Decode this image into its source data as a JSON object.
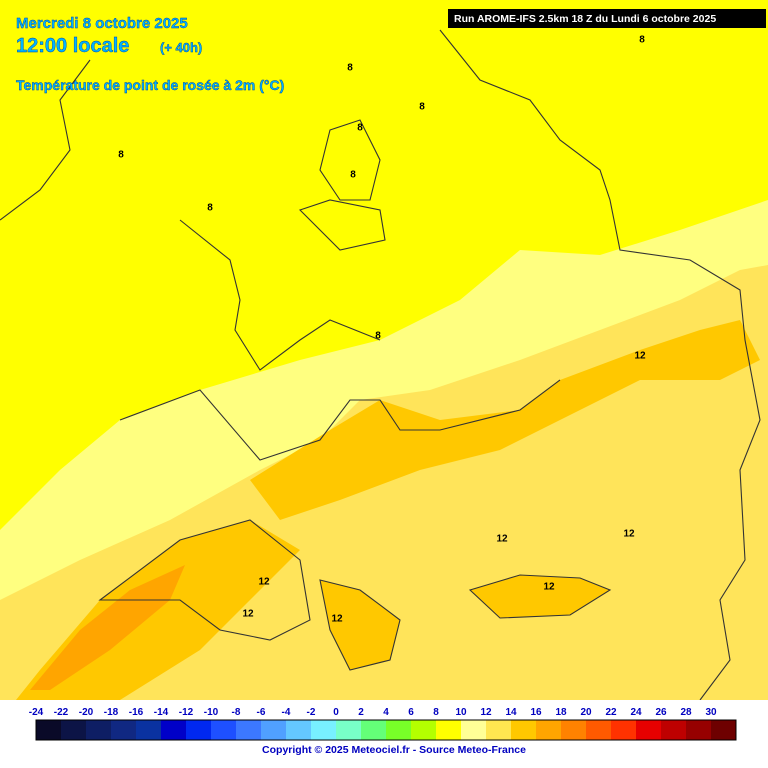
{
  "header": {
    "date": "Mercredi 8 octobre 2025",
    "time": "12:00 locale",
    "lead": "(+ 40h)",
    "parameter": "Température de point de rosée à 2m (°C)",
    "run": "Run AROME-IFS 2.5km 18 Z du Lundi 6 octobre 2025"
  },
  "contour_labels": [
    "8",
    "8",
    "8",
    "8",
    "8",
    "8",
    "8",
    "8",
    "12",
    "12",
    "12",
    "12",
    "12",
    "12",
    "12"
  ],
  "colorbar": {
    "labels": [
      -24,
      -22,
      -20,
      -18,
      -16,
      -14,
      -12,
      -10,
      -8,
      -6,
      -4,
      -2,
      0,
      2,
      4,
      6,
      8,
      10,
      12,
      14,
      16,
      18,
      20,
      22,
      24,
      26,
      28,
      30
    ],
    "colors": [
      "#0a0a28",
      "#0c1446",
      "#0e1e64",
      "#102882",
      "#0a32a0",
      "#0000c8",
      "#0028f0",
      "#1e50ff",
      "#3c78ff",
      "#50a0ff",
      "#64c8ff",
      "#78f0ff",
      "#78ffc8",
      "#64ff78",
      "#78ff28",
      "#b4ff00",
      "#ffff00",
      "#ffff96",
      "#ffe650",
      "#ffc800",
      "#ffa500",
      "#ff8200",
      "#ff5a00",
      "#ff3200",
      "#e60000",
      "#be0000",
      "#960000",
      "#6e0000"
    ]
  },
  "footer": {
    "copyright": "Copyright © 2025 Meteociel.fr - Source Meteo-France"
  }
}
